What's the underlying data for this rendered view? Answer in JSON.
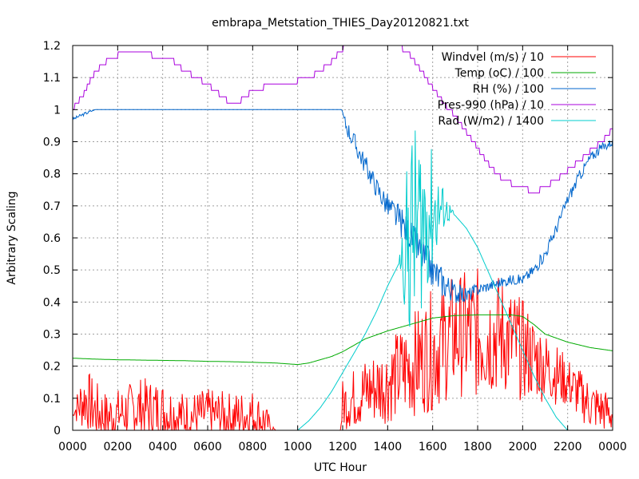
{
  "chart_data": {
    "type": "line",
    "title": "embrapa_Metstation_THIES_Day20120821.txt",
    "xlabel": "UTC Hour",
    "ylabel": "Arbitrary Scaling",
    "xlim": [
      0,
      24
    ],
    "ylim": [
      0,
      1.2
    ],
    "grid": true,
    "legend_position": "top-right",
    "x_ticks": [
      {
        "v": 0,
        "label": "0000"
      },
      {
        "v": 2,
        "label": "0200"
      },
      {
        "v": 4,
        "label": "0400"
      },
      {
        "v": 6,
        "label": "0600"
      },
      {
        "v": 8,
        "label": "0800"
      },
      {
        "v": 10,
        "label": "1000"
      },
      {
        "v": 12,
        "label": "1200"
      },
      {
        "v": 14,
        "label": "1400"
      },
      {
        "v": 16,
        "label": "1600"
      },
      {
        "v": 18,
        "label": "1800"
      },
      {
        "v": 20,
        "label": "2000"
      },
      {
        "v": 22,
        "label": "2200"
      },
      {
        "v": 24,
        "label": "0000"
      }
    ],
    "y_ticks": [
      {
        "v": 0,
        "label": "0"
      },
      {
        "v": 0.1,
        "label": "0.1"
      },
      {
        "v": 0.2,
        "label": "0.2"
      },
      {
        "v": 0.3,
        "label": "0.3"
      },
      {
        "v": 0.4,
        "label": "0.4"
      },
      {
        "v": 0.5,
        "label": "0.5"
      },
      {
        "v": 0.6,
        "label": "0.6"
      },
      {
        "v": 0.7,
        "label": "0.7"
      },
      {
        "v": 0.8,
        "label": "0.8"
      },
      {
        "v": 0.9,
        "label": "0.9"
      },
      {
        "v": 1.0,
        "label": "1"
      },
      {
        "v": 1.1,
        "label": "1.1"
      },
      {
        "v": 1.2,
        "label": "1.2"
      }
    ],
    "series": [
      {
        "name": "Windvel (m/s) / 10",
        "color": "#ff0000",
        "noisy": true,
        "noise_seed": 7,
        "x": [
          0,
          0.3,
          0.6,
          1,
          1.5,
          2,
          3,
          4,
          5,
          6,
          7,
          8,
          8.5,
          9,
          10,
          11,
          11.9,
          12,
          13,
          14,
          15,
          16,
          17,
          18,
          19,
          20,
          21,
          22,
          23,
          24
        ],
        "y": [
          0.05,
          0.08,
          0.1,
          0.06,
          0.04,
          0.05,
          0.07,
          0.06,
          0.04,
          0.05,
          0.04,
          0.05,
          0.03,
          0,
          0,
          0,
          0,
          0.08,
          0.12,
          0.15,
          0.2,
          0.25,
          0.3,
          0.3,
          0.3,
          0.25,
          0.2,
          0.15,
          0.08,
          0.05
        ],
        "amp": [
          0,
          0.05,
          0.06,
          0.06,
          0.05,
          0.05,
          0.06,
          0.06,
          0.05,
          0.05,
          0.05,
          0.05,
          0.04,
          0,
          0,
          0,
          0,
          0.05,
          0.07,
          0.08,
          0.1,
          0.12,
          0.12,
          0.13,
          0.12,
          0.1,
          0.07,
          0.05,
          0.05,
          0.04
        ]
      },
      {
        "name": "Temp (oC) / 100",
        "color": "#00aa00",
        "x": [
          0,
          1,
          2,
          3,
          4,
          5,
          6,
          7,
          8,
          9,
          10,
          10.5,
          11,
          11.5,
          12,
          12.5,
          13,
          14,
          15,
          16,
          17,
          18,
          19,
          19.5,
          20,
          20.5,
          21,
          22,
          23,
          24
        ],
        "y": [
          0.225,
          0.222,
          0.22,
          0.219,
          0.218,
          0.217,
          0.215,
          0.214,
          0.212,
          0.21,
          0.205,
          0.21,
          0.22,
          0.23,
          0.245,
          0.265,
          0.285,
          0.31,
          0.33,
          0.35,
          0.358,
          0.36,
          0.36,
          0.36,
          0.355,
          0.33,
          0.3,
          0.275,
          0.258,
          0.248
        ]
      },
      {
        "name": "RH (%) / 100",
        "color": "#0066cc",
        "noisy": true,
        "noise_seed": 3,
        "x": [
          0,
          0.3,
          0.8,
          1,
          2,
          4,
          6,
          8,
          10,
          11,
          11.95,
          12.1,
          12.5,
          13,
          13.5,
          14,
          14.5,
          15,
          15.5,
          16,
          16.5,
          17,
          17.5,
          18,
          18.5,
          19,
          19.5,
          20,
          20.5,
          21,
          21.5,
          22,
          22.5,
          23,
          23.5,
          24
        ],
        "y": [
          0.97,
          0.98,
          0.995,
          1,
          1,
          1,
          1,
          1,
          1,
          1,
          1,
          0.96,
          0.9,
          0.83,
          0.76,
          0.7,
          0.66,
          0.61,
          0.55,
          0.5,
          0.46,
          0.43,
          0.42,
          0.44,
          0.45,
          0.46,
          0.47,
          0.47,
          0.5,
          0.55,
          0.63,
          0.72,
          0.79,
          0.85,
          0.88,
          0.9
        ],
        "amp": [
          0.003,
          0.003,
          0.003,
          0,
          0,
          0,
          0,
          0,
          0,
          0,
          0,
          0.015,
          0.02,
          0.02,
          0.02,
          0.025,
          0.03,
          0.03,
          0.035,
          0.035,
          0.03,
          0.02,
          0.015,
          0.012,
          0.01,
          0.01,
          0.01,
          0.01,
          0.012,
          0.012,
          0.012,
          0.012,
          0.012,
          0.01,
          0.01,
          0.008
        ]
      },
      {
        "name": "Pres-990 (hPa) / 10",
        "color": "#aa00dd",
        "step": 0.02,
        "x": [
          0,
          0.5,
          1,
          1.5,
          2,
          2.5,
          3,
          3.5,
          4,
          4.5,
          5,
          5.5,
          6,
          6.5,
          7,
          7.5,
          8,
          8.5,
          9,
          9.5,
          10,
          10.5,
          11,
          11.5,
          12,
          12.1,
          14.5,
          15,
          15.5,
          16,
          16.5,
          17,
          17.5,
          18,
          18.5,
          19,
          19.5,
          20,
          20.5,
          21,
          21.5,
          22,
          22.5,
          23,
          23.5,
          24
        ],
        "y": [
          1.0,
          1.05,
          1.12,
          1.15,
          1.17,
          1.175,
          1.18,
          1.17,
          1.16,
          1.15,
          1.12,
          1.1,
          1.08,
          1.05,
          1.02,
          1.03,
          1.06,
          1.07,
          1.08,
          1.08,
          1.09,
          1.1,
          1.12,
          1.15,
          1.19,
          1.2,
          1.2,
          1.17,
          1.12,
          1.07,
          1.02,
          0.98,
          0.93,
          0.88,
          0.83,
          0.79,
          0.77,
          0.76,
          0.74,
          0.76,
          0.78,
          0.81,
          0.84,
          0.87,
          0.9,
          0.94
        ]
      },
      {
        "name": "Rad (W/m2) / 1400",
        "color": "#00cccc",
        "noisy": true,
        "noise_seed": 11,
        "x": [
          0,
          9,
          10,
          10.5,
          11,
          11.5,
          12,
          12.5,
          13,
          13.5,
          14,
          14.5,
          15,
          15.5,
          16,
          16.5,
          17,
          17.5,
          18,
          18.5,
          19,
          19.5,
          20,
          20.5,
          21,
          21.5,
          22,
          24
        ],
        "y": [
          0,
          0,
          0,
          0.03,
          0.07,
          0.12,
          0.18,
          0.24,
          0.3,
          0.37,
          0.45,
          0.52,
          0.6,
          0.66,
          0.68,
          0.69,
          0.67,
          0.63,
          0.57,
          0.49,
          0.41,
          0.33,
          0.25,
          0.17,
          0.1,
          0.04,
          0,
          0
        ],
        "amp": [
          0,
          0,
          0,
          0,
          0,
          0,
          0,
          0,
          0,
          0,
          0,
          0,
          0.22,
          0.18,
          0.12,
          0.04,
          0,
          0,
          0,
          0,
          0,
          0,
          0,
          0,
          0,
          0,
          0,
          0
        ]
      }
    ]
  }
}
